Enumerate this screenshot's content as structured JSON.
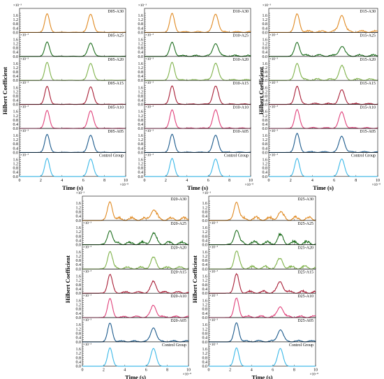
{
  "chart_data": {
    "type": "line",
    "ylabel": "Hilbert Coefficient",
    "xlabel": "Time (s)",
    "x_exponent": "×10⁻⁸",
    "y_exponent": "×10⁻³",
    "xlim": [
      0,
      10
    ],
    "x_ticks": [
      "0",
      "2",
      "4",
      "6",
      "8",
      "10"
    ],
    "ylim": [
      0,
      2.0
    ],
    "y_ticks": [
      "0.0",
      "0.2",
      "0.4",
      "0.6",
      "0.8",
      "1.0",
      "1.2",
      "1.4",
      "1.6",
      "1.8"
    ],
    "peak_positions": [
      2.6,
      6.7
    ],
    "row_labels": [
      "A30",
      "A25",
      "A20",
      "A15",
      "A10",
      "A05",
      "Control"
    ],
    "row_colors": [
      "#E08A22",
      "#1E6E1E",
      "#7FB24A",
      "#A81E36",
      "#E0407A",
      "#1C5A8C",
      "#3AB8E8"
    ],
    "groups": [
      {
        "name": "D05",
        "panels": [
          {
            "label": "D05-A30",
            "peaks": [
              1.75,
              1.7
            ],
            "noise": 0.02
          },
          {
            "label": "D05-A25",
            "peaks": [
              1.35,
              1.25
            ],
            "noise": 0.02
          },
          {
            "label": "D05-A20",
            "peaks": [
              1.7,
              1.6
            ],
            "noise": 0.02
          },
          {
            "label": "D05-A15",
            "peaks": [
              1.7,
              1.65
            ],
            "noise": 0.02
          },
          {
            "label": "D05-A10",
            "peaks": [
              1.7,
              1.65
            ],
            "noise": 0.02
          },
          {
            "label": "D05-A05",
            "peaks": [
              1.7,
              1.6
            ],
            "noise": 0.02
          },
          {
            "label": "Control Group",
            "peaks": [
              1.7,
              1.65
            ],
            "noise": 0.0
          }
        ]
      },
      {
        "name": "D10",
        "panels": [
          {
            "label": "D10-A30",
            "peaks": [
              1.75,
              1.7
            ],
            "noise": 0.08
          },
          {
            "label": "D10-A25",
            "peaks": [
              1.3,
              1.2
            ],
            "noise": 0.1
          },
          {
            "label": "D10-A20",
            "peaks": [
              1.7,
              1.6
            ],
            "noise": 0.08
          },
          {
            "label": "D10-A15",
            "peaks": [
              1.75,
              1.7
            ],
            "noise": 0.05
          },
          {
            "label": "D10-A10",
            "peaks": [
              1.75,
              1.7
            ],
            "noise": 0.05
          },
          {
            "label": "D10-A05",
            "peaks": [
              1.7,
              1.6
            ],
            "noise": 0.04
          },
          {
            "label": "Control Group",
            "peaks": [
              1.7,
              1.65
            ],
            "noise": 0.0
          }
        ]
      },
      {
        "name": "D15",
        "panels": [
          {
            "label": "D15-A30",
            "peaks": [
              1.7,
              1.6
            ],
            "noise": 0.15
          },
          {
            "label": "D15-A25",
            "peaks": [
              1.3,
              0.9
            ],
            "noise": 0.15
          },
          {
            "label": "D15-A20",
            "peaks": [
              1.6,
              1.3
            ],
            "noise": 0.15
          },
          {
            "label": "D15-A15",
            "peaks": [
              1.7,
              1.3
            ],
            "noise": 0.1
          },
          {
            "label": "D15-A10",
            "peaks": [
              1.75,
              1.5
            ],
            "noise": 0.08
          },
          {
            "label": "D15-A05",
            "peaks": [
              1.75,
              1.5
            ],
            "noise": 0.08
          },
          {
            "label": "Control Group",
            "peaks": [
              1.7,
              1.65
            ],
            "noise": 0.0
          }
        ]
      },
      {
        "name": "D20",
        "panels": [
          {
            "label": "D20-A30",
            "peaks": [
              1.7,
              0.9
            ],
            "noise": 0.25
          },
          {
            "label": "D20-A25",
            "peaks": [
              1.3,
              0.9
            ],
            "noise": 0.25
          },
          {
            "label": "D20-A20",
            "peaks": [
              1.6,
              0.9
            ],
            "noise": 0.2
          },
          {
            "label": "D20-A15",
            "peaks": [
              1.7,
              1.0
            ],
            "noise": 0.15
          },
          {
            "label": "D20-A10",
            "peaks": [
              1.7,
              1.1
            ],
            "noise": 0.12
          },
          {
            "label": "D20-A05",
            "peaks": [
              1.7,
              1.3
            ],
            "noise": 0.1
          },
          {
            "label": "Control Group",
            "peaks": [
              1.7,
              1.65
            ],
            "noise": 0.0
          }
        ]
      },
      {
        "name": "D25",
        "panels": [
          {
            "label": "D25-A30",
            "peaks": [
              1.7,
              0.6
            ],
            "noise": 0.3
          },
          {
            "label": "D25-A25",
            "peaks": [
              1.3,
              0.7
            ],
            "noise": 0.3
          },
          {
            "label": "D25-A20",
            "peaks": [
              1.6,
              0.8
            ],
            "noise": 0.25
          },
          {
            "label": "D25-A15",
            "peaks": [
              1.7,
              1.0
            ],
            "noise": 0.2
          },
          {
            "label": "D25-A10",
            "peaks": [
              1.75,
              1.0
            ],
            "noise": 0.15
          },
          {
            "label": "D25-A05",
            "peaks": [
              1.75,
              1.1
            ],
            "noise": 0.12
          },
          {
            "label": "Control Group",
            "peaks": [
              1.7,
              1.65
            ],
            "noise": 0.0
          }
        ]
      }
    ]
  }
}
